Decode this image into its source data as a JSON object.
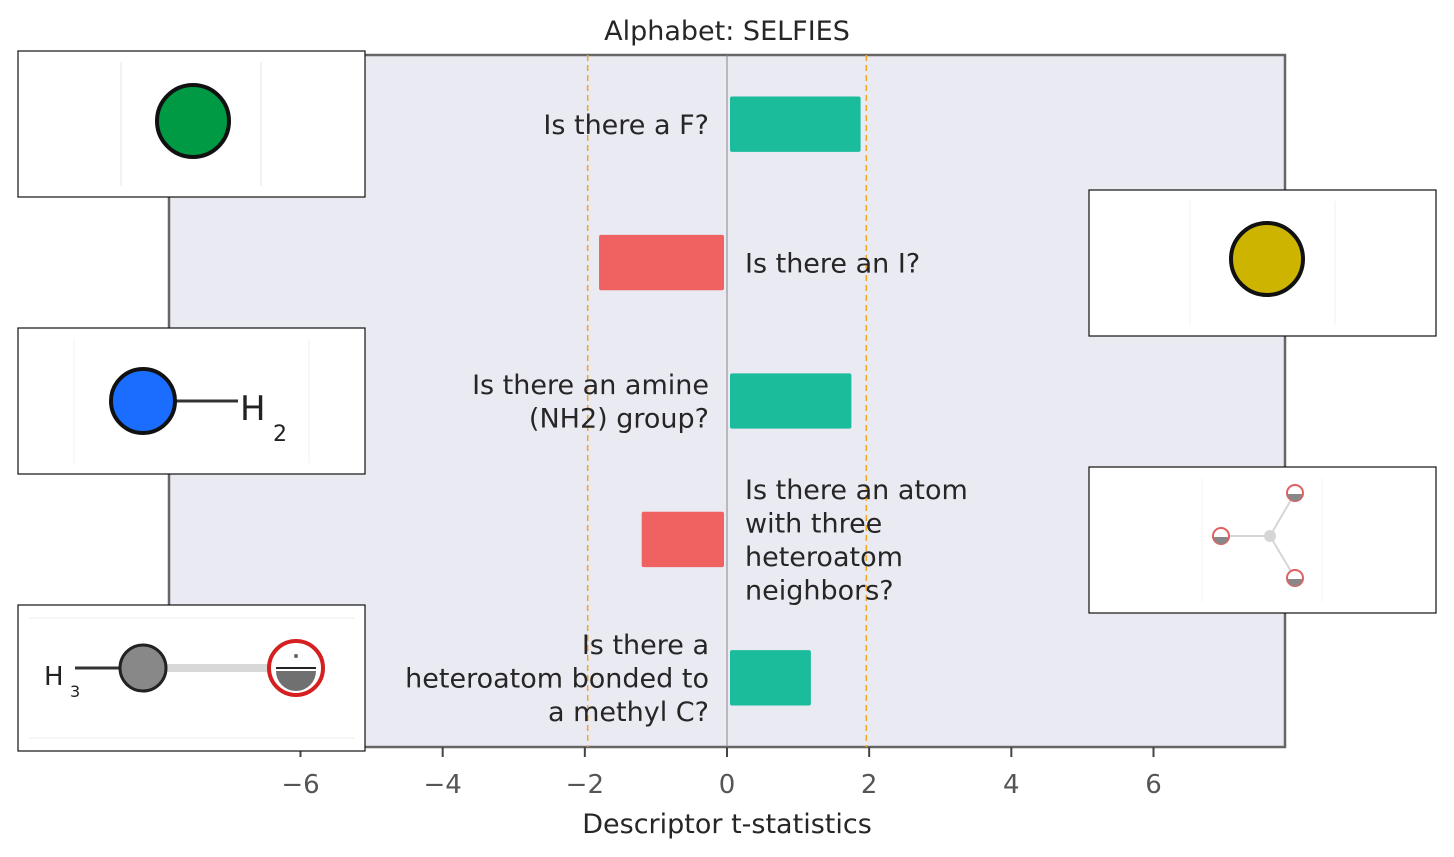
{
  "chart_data": {
    "type": "bar",
    "orientation": "horizontal",
    "title": "Alphabet: SELFIES",
    "xlabel": "Descriptor t-statistics",
    "ylabel": "",
    "xlim": [
      -7.85,
      7.85
    ],
    "xticks": [
      -6,
      -4,
      -2,
      0,
      2,
      4,
      6
    ],
    "xtick_labels": [
      "−6",
      "−4",
      "−2",
      "0",
      "2",
      "4",
      "6"
    ],
    "reference_lines": [
      -1.96,
      0,
      1.96
    ],
    "grid": false,
    "colors": {
      "positive": "#1abc9c",
      "negative": "#f06262",
      "threshold": "#f5a623",
      "zero": "#888888",
      "axes_bg": "#eaeaf2"
    },
    "categories": [
      "Is there a F?",
      "Is there an I?",
      "Is there an amine (NH2) group?",
      "Is there an atom with three heteroatom neighbors?",
      "Is there a heteroatom bonded to a methyl C?"
    ],
    "category_lines": [
      [
        "Is there a F?"
      ],
      [
        "Is there an I?"
      ],
      [
        "Is there an amine",
        "(NH2) group?"
      ],
      [
        "Is there an atom",
        "with three",
        "heteroatom",
        "neighbors?"
      ],
      [
        "Is there a",
        "heteroatom bonded to",
        "a methyl C?"
      ]
    ],
    "values": [
      1.88,
      -1.8,
      1.75,
      -1.2,
      1.18
    ],
    "insets": [
      {
        "name": "fluorine-atom-image",
        "side": "left"
      },
      {
        "name": "iodine-atom-image",
        "side": "right"
      },
      {
        "name": "amine-nh2-image",
        "side": "left"
      },
      {
        "name": "three-heteroatom-neighbors-image",
        "side": "right"
      },
      {
        "name": "methyl-heteroatom-image",
        "side": "left"
      }
    ],
    "inset_texts": {
      "h2": [
        "H",
        "2"
      ],
      "h3": [
        "H",
        "3"
      ]
    }
  }
}
